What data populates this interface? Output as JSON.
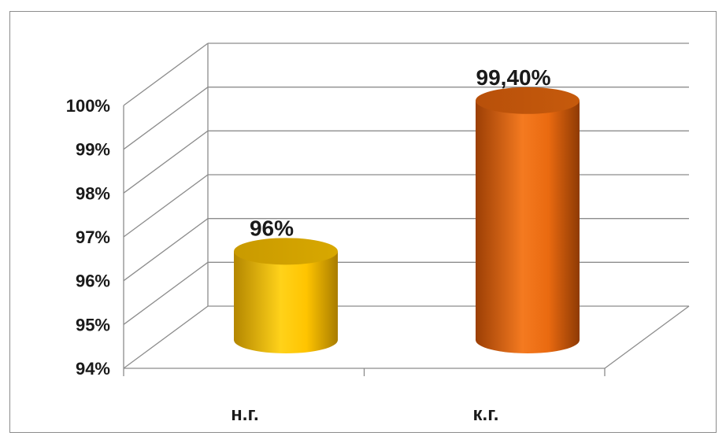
{
  "chart_data": {
    "type": "bar",
    "categories": [
      "н.г.",
      "к.г."
    ],
    "values": [
      96,
      99.4
    ],
    "data_labels": [
      "96%",
      "99,40%"
    ],
    "ylim": [
      94,
      100
    ],
    "y_ticks": [
      "94%",
      "95%",
      "96%",
      "97%",
      "98%",
      "99%",
      "100%"
    ],
    "title": "",
    "xlabel": "",
    "ylabel": "",
    "grid": true,
    "legend": "none",
    "colors": [
      "#FFC000",
      "#E46C0A"
    ]
  }
}
